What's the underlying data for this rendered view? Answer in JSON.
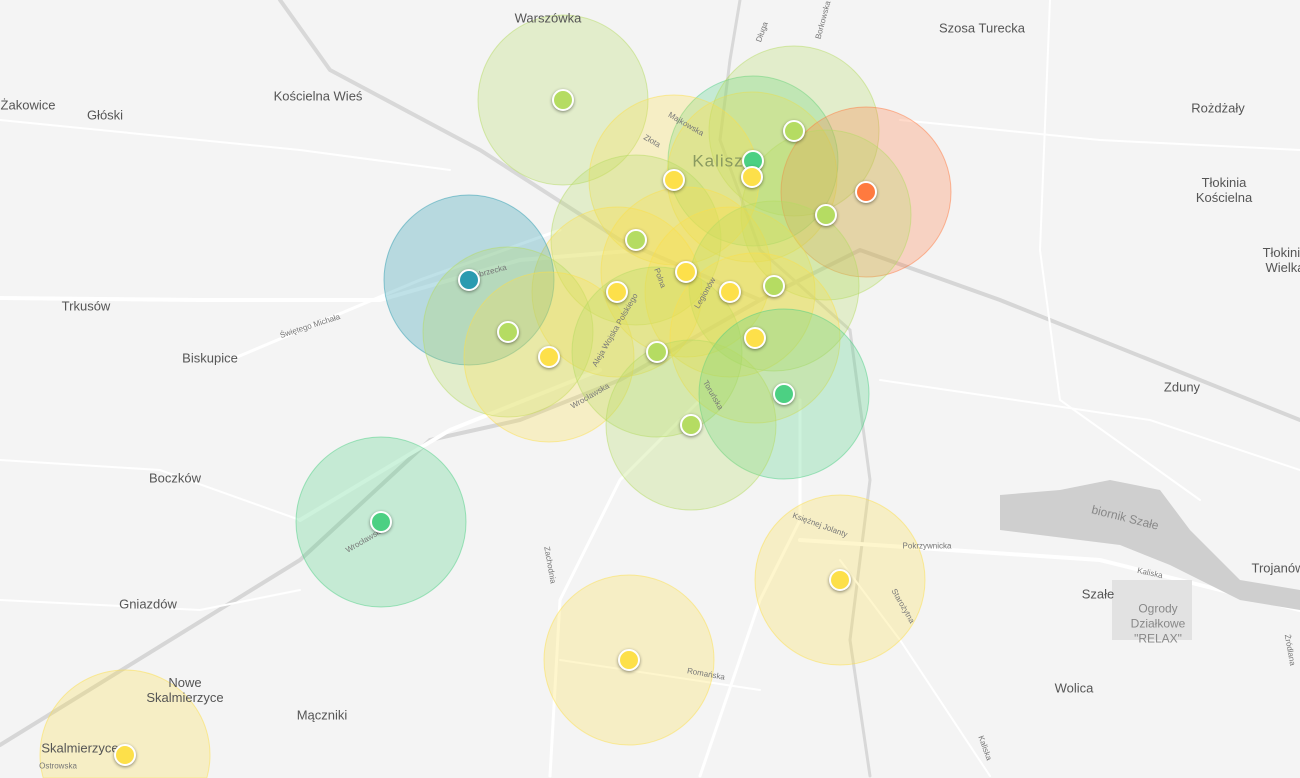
{
  "map": {
    "places": [
      "Warszówka",
      "Kościelna Wieś",
      "Żakowice",
      "Głóski",
      "Trkusów",
      "Biskupice",
      "Boczków",
      "Gniazdów",
      "Nowe Skalmierzyce",
      "Skalmierzyce",
      "Mączniki",
      "Szosa Turecka",
      "Rożdżały",
      "Tłokinia Kościelna",
      "Tłokinia Wielka",
      "Zduny",
      "Szałe",
      "Ogrody Działkowe \"RELAX\"",
      "Trojanów",
      "Wolica",
      "Kalisz",
      "biornik Szałe"
    ],
    "streets": [
      "Dobrzecka",
      "Świętego Michała",
      "Wrocławska",
      "Aleja Wojska Polskiego",
      "Zachodnia",
      "Romańska",
      "Kaliska",
      "Pokrzywnicka",
      "Starożytna",
      "Księżnej Jolanty",
      "Ostrowska",
      "Długa",
      "Borkowska",
      "Majkowska",
      "Złota",
      "Polna",
      "Legionów",
      "Toruńska",
      "Wrocławska",
      "Kaliska",
      "Żródlana"
    ]
  },
  "levels": {
    "yellow": "#fde04a",
    "lightgreen": "#b5dc62",
    "green": "#4cd083",
    "teal": "#2a9bb0",
    "orange": "#ff7a3f"
  },
  "stations": [
    "lightgreen",
    "green",
    "yellow",
    "lightgreen",
    "orange",
    "lightgreen",
    "yellow",
    "lightgreen",
    "yellow",
    "yellow",
    "yellow",
    "lightgreen",
    "teal",
    "lightgreen",
    "yellow",
    "lightgreen",
    "yellow",
    "green",
    "lightgreen",
    "green",
    "yellow",
    "yellow",
    "yellow"
  ]
}
